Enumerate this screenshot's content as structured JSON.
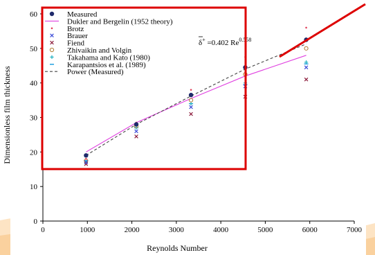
{
  "chart_data": {
    "type": "scatter",
    "title": "",
    "xlabel": "Reynolds Number",
    "ylabel": "Dimensionless film thickness",
    "xlim": [
      0,
      7000
    ],
    "ylim": [
      0,
      60
    ],
    "xticks": [
      0,
      1000,
      2000,
      3000,
      4000,
      5000,
      6000,
      7000
    ],
    "yticks": [
      0,
      10,
      20,
      30,
      40,
      50,
      60
    ],
    "grid": false,
    "legend_position": "top-left",
    "x": [
      970,
      2100,
      3330,
      4550,
      5920
    ],
    "series": [
      {
        "name": "Measured",
        "kind": "marker",
        "marker": "filled-diamond",
        "color": "#1f2a6b",
        "values": [
          19.0,
          28.0,
          36.5,
          44.5,
          52.5
        ]
      },
      {
        "name": "Dukler and Bergelin (1952 theory)",
        "kind": "line",
        "color": "#e040e0",
        "values": [
          20.0,
          28.5,
          35.5,
          42.0,
          48.0
        ]
      },
      {
        "name": "Brotz",
        "kind": "marker",
        "marker": "small-dot",
        "color": "#e0405a",
        "values": [
          18.0,
          28.5,
          38.0,
          47.5,
          56.0
        ]
      },
      {
        "name": "Brauer",
        "kind": "marker",
        "marker": "x",
        "color": "#3b4bd8",
        "values": [
          17.0,
          26.0,
          33.0,
          39.0,
          44.5
        ]
      },
      {
        "name": "Fiend",
        "kind": "marker",
        "marker": "x",
        "color": "#8b1a3a",
        "values": [
          16.5,
          24.5,
          31.0,
          36.0,
          41.0
        ]
      },
      {
        "name": "Zhivaikin and Volgin",
        "kind": "marker",
        "marker": "open-circle",
        "color": "#b07a30",
        "values": [
          17.5,
          27.5,
          35.0,
          42.5,
          50.0
        ]
      },
      {
        "name": "Takahama and Kato (1980)",
        "kind": "marker",
        "marker": "plus",
        "color": "#20b0c0",
        "values": [
          17.0,
          27.0,
          34.0,
          40.0,
          46.0
        ]
      },
      {
        "name": "Karapantsios et al. (1989)",
        "kind": "marker",
        "marker": "dash",
        "color": "#20a0e0",
        "values": [
          17.5,
          27.0,
          34.0,
          39.5,
          45.5
        ]
      },
      {
        "name": "Power (Measured)",
        "kind": "dashed-line",
        "color": "#444444",
        "values": [
          19.0,
          28.0,
          36.2,
          44.0,
          51.3
        ]
      }
    ],
    "annotation": {
      "text_prefix": "δ",
      "text_suffix": "+ =0.402 Re",
      "exponent": "0.558"
    }
  },
  "decor": {
    "highlight_color": "#dd0000",
    "accent_color": "#f3b56b"
  }
}
